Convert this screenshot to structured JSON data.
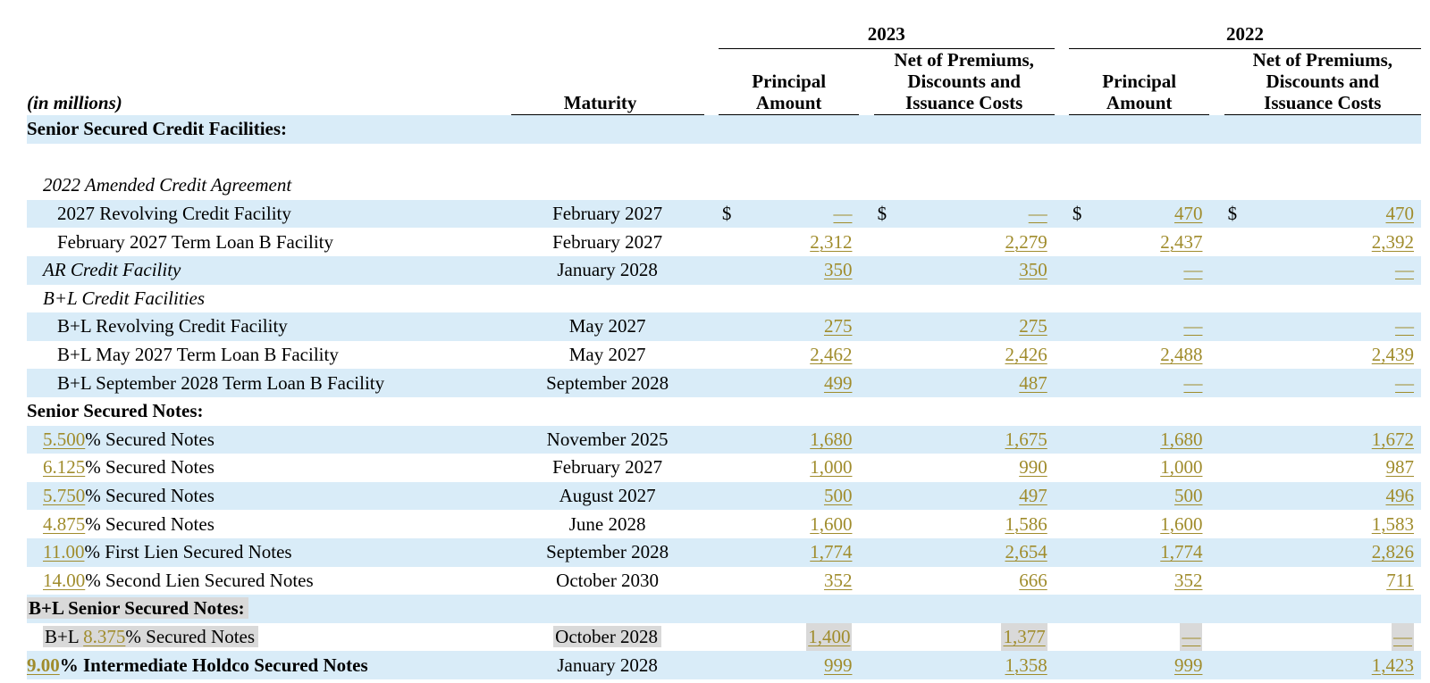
{
  "header": {
    "units": "(in millions)",
    "year_a": "2023",
    "year_b": "2022",
    "maturity": "Maturity",
    "principal_line1": "Principal",
    "principal_line2": "Amount",
    "net_line1": "Net of Premiums,",
    "net_line2": "Discounts and",
    "net_line3": "Issuance Costs"
  },
  "currency_symbol": "$",
  "rows": [
    {
      "type": "section",
      "label": "Senior Secured Credit Facilities:",
      "band": true
    },
    {
      "type": "blank",
      "band": false
    },
    {
      "type": "subsection",
      "label": "2022 Amended Credit Agreement",
      "band": false
    },
    {
      "type": "item",
      "label": "2027 Revolving Credit Facility",
      "indent": 2,
      "maturity": "February 2027",
      "dollar": true,
      "values": [
        "—",
        "—",
        "470",
        "470"
      ],
      "band": true
    },
    {
      "type": "item",
      "label": "February 2027 Term Loan B Facility",
      "indent": 2,
      "maturity": "February 2027",
      "values": [
        "2,312",
        "2,279",
        "2,437",
        "2,392"
      ],
      "band": false
    },
    {
      "type": "item",
      "label": "AR Credit Facility",
      "indent": 1,
      "italic": true,
      "maturity": "January 2028",
      "values": [
        "350",
        "350",
        "—",
        "—"
      ],
      "band": true
    },
    {
      "type": "subsection",
      "label": "B+L Credit Facilities",
      "band": false
    },
    {
      "type": "item",
      "label": "B+L Revolving Credit Facility",
      "indent": 2,
      "maturity": "May 2027",
      "values": [
        "275",
        "275",
        "—",
        "—"
      ],
      "band": true
    },
    {
      "type": "item",
      "label": "B+L May 2027 Term Loan B Facility",
      "indent": 2,
      "maturity": "May 2027",
      "values": [
        "2,462",
        "2,426",
        "2,488",
        "2,439"
      ],
      "band": false
    },
    {
      "type": "item",
      "label": "B+L September 2028 Term Loan B Facility",
      "indent": 2,
      "maturity": "September 2028",
      "values": [
        "499",
        "487",
        "—",
        "—"
      ],
      "band": true
    },
    {
      "type": "section",
      "label": "Senior Secured Notes:",
      "band": false
    },
    {
      "type": "note",
      "rate": "5.500",
      "label": "% Secured Notes",
      "indent": 1,
      "maturity": "November 2025",
      "values": [
        "1,680",
        "1,675",
        "1,680",
        "1,672"
      ],
      "band": true
    },
    {
      "type": "note",
      "rate": "6.125",
      "label": "% Secured Notes",
      "indent": 1,
      "maturity": "February 2027",
      "values": [
        "1,000",
        "990",
        "1,000",
        "987"
      ],
      "band": false
    },
    {
      "type": "note",
      "rate": "5.750",
      "label": "% Secured Notes",
      "indent": 1,
      "maturity": "August 2027",
      "values": [
        "500",
        "497",
        "500",
        "496"
      ],
      "band": true
    },
    {
      "type": "note",
      "rate": "4.875",
      "label": "% Secured Notes",
      "indent": 1,
      "maturity": "June 2028",
      "values": [
        "1,600",
        "1,586",
        "1,600",
        "1,583"
      ],
      "band": false
    },
    {
      "type": "note",
      "rate": "11.00",
      "label": "% First Lien Secured Notes",
      "indent": 1,
      "maturity": "September 2028",
      "values": [
        "1,774",
        "2,654",
        "1,774",
        "2,826"
      ],
      "band": true
    },
    {
      "type": "note",
      "rate": "14.00",
      "label": "% Second Lien Secured Notes",
      "indent": 1,
      "maturity": "October 2030",
      "values": [
        "352",
        "666",
        "352",
        "711"
      ],
      "band": false
    },
    {
      "type": "section",
      "label": "B+L Senior Secured Notes:",
      "band": true,
      "highlight": true
    },
    {
      "type": "note",
      "prefix": "B+L ",
      "rate": "8.375",
      "label": "% Secured Notes",
      "indent": 1,
      "maturity": "October 2028",
      "values": [
        "1,400",
        "1,377",
        "—",
        "—"
      ],
      "band": false,
      "highlight": true
    },
    {
      "type": "note",
      "rate": "9.00",
      "label": "% Intermediate Holdco Secured Notes",
      "indent": 0,
      "bold": true,
      "maturity": "January 2028",
      "values": [
        "999",
        "1,358",
        "999",
        "1,423"
      ],
      "band": true
    }
  ]
}
